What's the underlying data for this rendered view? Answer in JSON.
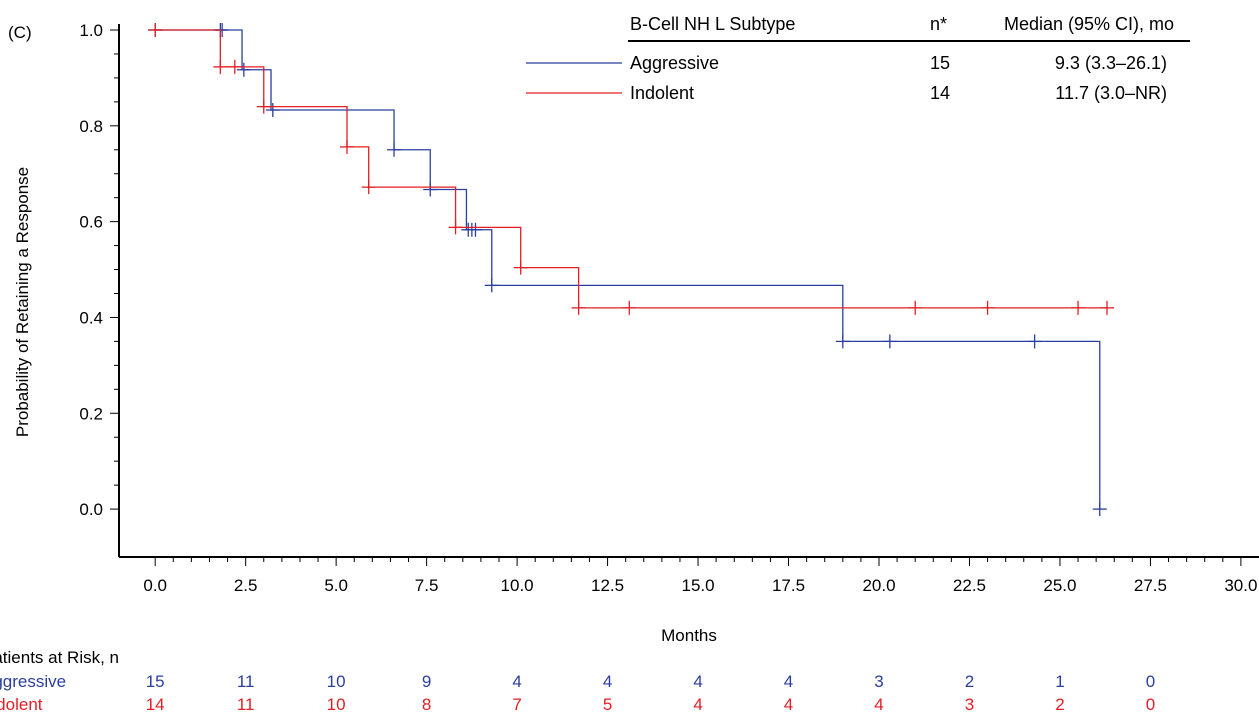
{
  "panel_label": "(C)",
  "colors": {
    "aggressive": "#2b3fa0",
    "indolent": "#e31e24",
    "axis": "#000000"
  },
  "chart_data": {
    "type": "line",
    "xlabel": "Months",
    "ylabel": "Probability of Retaining a Response",
    "xlim": [
      -1,
      30.5
    ],
    "ylim": [
      -0.1,
      1.0
    ],
    "x_ticks": [
      "0.0",
      "2.5",
      "5.0",
      "7.5",
      "10.0",
      "12.5",
      "15.0",
      "17.5",
      "20.0",
      "22.5",
      "25.0",
      "27.5",
      "30.0"
    ],
    "y_ticks": [
      "0.0",
      "0.2",
      "0.4",
      "0.6",
      "0.8",
      "1.0"
    ],
    "legend": {
      "headers": [
        "B-Cell NH L Subtype",
        "n*",
        "Median (95% CI), mo"
      ],
      "rows": [
        {
          "name": "Aggressive",
          "n": "15",
          "median": "9.3 (3.3–26.1)"
        },
        {
          "name": "Indolent",
          "n": "14",
          "median": "11.7 (3.0–NR)"
        }
      ]
    },
    "series": [
      {
        "name": "Aggressive",
        "steps": [
          [
            0,
            1.0
          ],
          [
            2.4,
            0.917
          ],
          [
            3.2,
            0.833
          ],
          [
            6.6,
            0.75
          ],
          [
            7.6,
            0.667
          ],
          [
            8.6,
            0.583
          ],
          [
            9.3,
            0.467
          ],
          [
            19.0,
            0.35
          ],
          [
            26.1,
            0.0
          ]
        ],
        "censored": [
          [
            0,
            1.0
          ],
          [
            1.8,
            1.0
          ],
          [
            1.85,
            1.0
          ],
          [
            2.45,
            0.917
          ],
          [
            3.25,
            0.833
          ],
          [
            6.6,
            0.75
          ],
          [
            7.6,
            0.667
          ],
          [
            8.65,
            0.583
          ],
          [
            8.75,
            0.583
          ],
          [
            8.85,
            0.583
          ],
          [
            9.3,
            0.467
          ],
          [
            19.0,
            0.35
          ],
          [
            20.3,
            0.35
          ],
          [
            24.3,
            0.35
          ],
          [
            26.1,
            0.0
          ]
        ]
      },
      {
        "name": "Indolent",
        "steps": [
          [
            0,
            1.0
          ],
          [
            1.8,
            0.923
          ],
          [
            3.0,
            0.84
          ],
          [
            5.3,
            0.756
          ],
          [
            5.9,
            0.672
          ],
          [
            8.3,
            0.588
          ],
          [
            10.1,
            0.504
          ],
          [
            11.7,
            0.42
          ],
          [
            26.3,
            0.42
          ]
        ],
        "censored": [
          [
            0,
            1.0
          ],
          [
            1.8,
            0.923
          ],
          [
            2.2,
            0.923
          ],
          [
            3.0,
            0.84
          ],
          [
            5.3,
            0.756
          ],
          [
            5.9,
            0.672
          ],
          [
            8.3,
            0.588
          ],
          [
            10.1,
            0.504
          ],
          [
            11.7,
            0.42
          ],
          [
            13.1,
            0.42
          ],
          [
            21.0,
            0.42
          ],
          [
            23.0,
            0.42
          ],
          [
            25.5,
            0.42
          ],
          [
            26.3,
            0.42
          ]
        ]
      }
    ],
    "risk_table": {
      "title": "Patients at Risk, n",
      "rows": [
        {
          "name": "Aggressive",
          "values": [
            "15",
            "11",
            "10",
            "9",
            "4",
            "4",
            "4",
            "4",
            "3",
            "2",
            "1",
            "0"
          ]
        },
        {
          "name": "Indolent",
          "values": [
            "14",
            "11",
            "10",
            "8",
            "7",
            "5",
            "4",
            "4",
            "4",
            "3",
            "2",
            "0"
          ]
        }
      ]
    }
  }
}
